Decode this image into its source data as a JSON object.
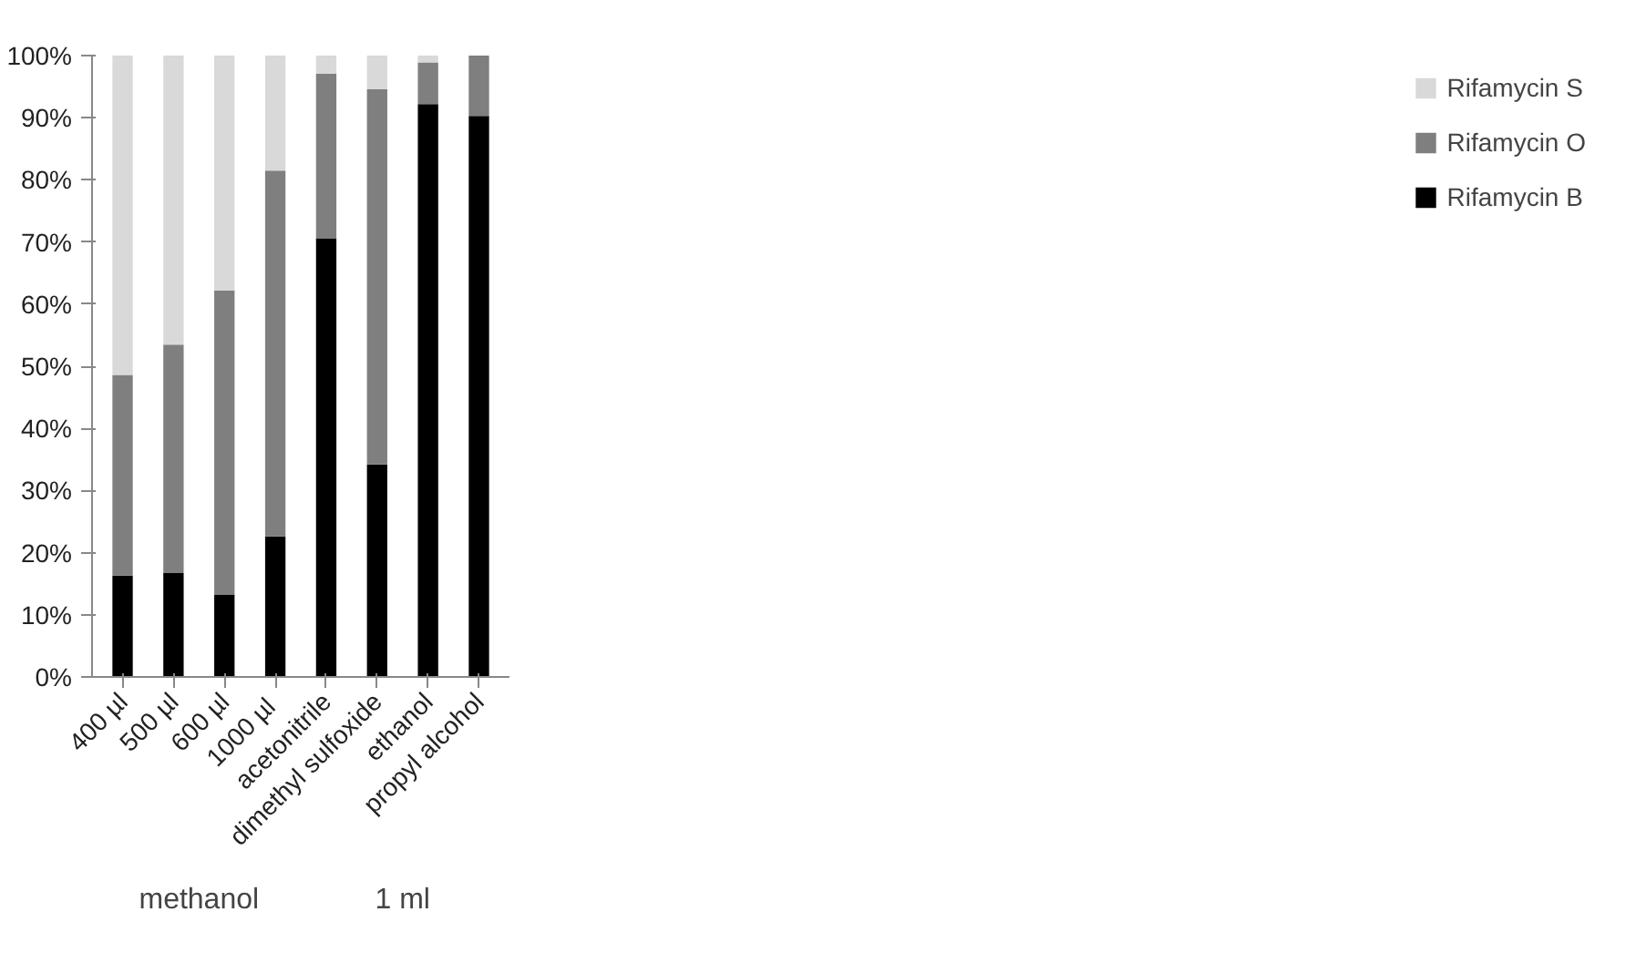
{
  "chart_data": {
    "type": "bar",
    "stacked": true,
    "categories": [
      "400 µl",
      "500 µl",
      "600 µl",
      "1000  µl",
      "acetonitrile",
      "dimethyl sulfoxide",
      "ethanol",
      "propyl alcohol"
    ],
    "series": [
      {
        "name": "Rifamycin B",
        "color": "#000000",
        "values": [
          16.3,
          16.7,
          13.2,
          22.6,
          70.6,
          34.2,
          92.2,
          90.3
        ]
      },
      {
        "name": "Rifamycin O",
        "color": "#7f7f7f",
        "values": [
          32.3,
          36.8,
          49.0,
          58.9,
          26.5,
          60.4,
          6.7,
          9.7
        ]
      },
      {
        "name": "Rifamycin S",
        "color": "#d9d9d9",
        "values": [
          51.4,
          46.5,
          37.8,
          18.5,
          2.9,
          5.4,
          1.1,
          0
        ]
      }
    ],
    "ylim": [
      0,
      100
    ],
    "yticks": [
      {
        "value": 0,
        "label": "0%"
      },
      {
        "value": 10,
        "label": "10%"
      },
      {
        "value": 20,
        "label": "20%"
      },
      {
        "value": 30,
        "label": "30%"
      },
      {
        "value": 40,
        "label": "40%"
      },
      {
        "value": 50,
        "label": "50%"
      },
      {
        "value": 60,
        "label": "60%"
      },
      {
        "value": 70,
        "label": "70%"
      },
      {
        "value": 80,
        "label": "80%"
      },
      {
        "value": 90,
        "label": "90%"
      },
      {
        "value": 100,
        "label": "100%"
      }
    ],
    "grid": false,
    "legend": "right",
    "annotations": [
      "methanol",
      "1 ml"
    ]
  }
}
